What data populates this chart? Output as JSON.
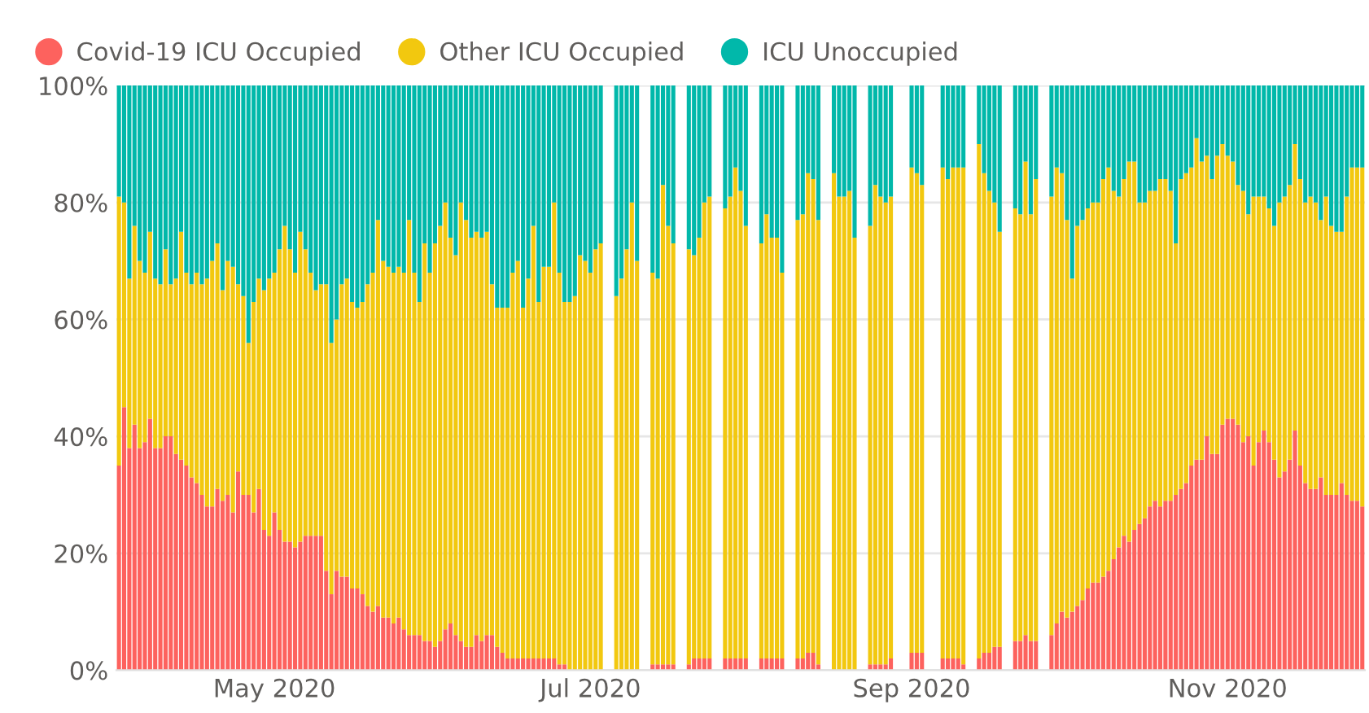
{
  "chart_data": {
    "type": "bar",
    "stacked": true,
    "legend": "top left",
    "grid": "y",
    "ylim": [
      0,
      100
    ],
    "yticks": [
      {
        "value": 0,
        "label": "0%"
      },
      {
        "value": 20,
        "label": "20%"
      },
      {
        "value": 40,
        "label": "40%"
      },
      {
        "value": 60,
        "label": "60%"
      },
      {
        "value": 80,
        "label": "80%"
      },
      {
        "value": 100,
        "label": "100%"
      }
    ],
    "xlim": [
      "2020-03-31T12:00",
      "2020-11-27T12:00"
    ],
    "xticks": [
      {
        "value": "2020-05-01",
        "label": "May 2020"
      },
      {
        "value": "2020-07-01",
        "label": "Jul 2020"
      },
      {
        "value": "2020-09-01",
        "label": "Sep 2020"
      },
      {
        "value": "2020-11-01",
        "label": "Nov 2020"
      }
    ],
    "x": [
      "2020-04-01",
      "2020-04-02",
      "2020-04-03",
      "2020-04-04",
      "2020-04-05",
      "2020-04-06",
      "2020-04-07",
      "2020-04-08",
      "2020-04-09",
      "2020-04-10",
      "2020-04-11",
      "2020-04-12",
      "2020-04-13",
      "2020-04-14",
      "2020-04-15",
      "2020-04-16",
      "2020-04-17",
      "2020-04-18",
      "2020-04-19",
      "2020-04-20",
      "2020-04-21",
      "2020-04-22",
      "2020-04-23",
      "2020-04-24",
      "2020-04-25",
      "2020-04-26",
      "2020-04-27",
      "2020-04-28",
      "2020-04-29",
      "2020-04-30",
      "2020-05-01",
      "2020-05-02",
      "2020-05-03",
      "2020-05-04",
      "2020-05-05",
      "2020-05-06",
      "2020-05-07",
      "2020-05-08",
      "2020-05-09",
      "2020-05-10",
      "2020-05-11",
      "2020-05-12",
      "2020-05-13",
      "2020-05-14",
      "2020-05-15",
      "2020-05-16",
      "2020-05-17",
      "2020-05-18",
      "2020-05-19",
      "2020-05-20",
      "2020-05-21",
      "2020-05-22",
      "2020-05-23",
      "2020-05-24",
      "2020-05-25",
      "2020-05-26",
      "2020-05-27",
      "2020-05-28",
      "2020-05-29",
      "2020-05-30",
      "2020-05-31",
      "2020-06-01",
      "2020-06-02",
      "2020-06-03",
      "2020-06-04",
      "2020-06-05",
      "2020-06-06",
      "2020-06-07",
      "2020-06-08",
      "2020-06-09",
      "2020-06-10",
      "2020-06-11",
      "2020-06-12",
      "2020-06-13",
      "2020-06-14",
      "2020-06-15",
      "2020-06-16",
      "2020-06-17",
      "2020-06-18",
      "2020-06-19",
      "2020-06-20",
      "2020-06-21",
      "2020-06-22",
      "2020-06-23",
      "2020-06-24",
      "2020-06-25",
      "2020-06-26",
      "2020-06-27",
      "2020-06-28",
      "2020-06-29",
      "2020-06-30",
      "2020-07-01",
      "2020-07-02",
      "2020-07-03",
      "2020-07-06",
      "2020-07-07",
      "2020-07-08",
      "2020-07-09",
      "2020-07-10",
      "2020-07-13",
      "2020-07-14",
      "2020-07-15",
      "2020-07-16",
      "2020-07-17",
      "2020-07-20",
      "2020-07-21",
      "2020-07-22",
      "2020-07-23",
      "2020-07-24",
      "2020-07-27",
      "2020-07-28",
      "2020-07-29",
      "2020-07-30",
      "2020-07-31",
      "2020-08-03",
      "2020-08-04",
      "2020-08-05",
      "2020-08-06",
      "2020-08-07",
      "2020-08-10",
      "2020-08-11",
      "2020-08-12",
      "2020-08-13",
      "2020-08-14",
      "2020-08-17",
      "2020-08-18",
      "2020-08-19",
      "2020-08-20",
      "2020-08-21",
      "2020-08-24",
      "2020-08-25",
      "2020-08-26",
      "2020-08-27",
      "2020-08-28",
      "2020-09-01",
      "2020-09-02",
      "2020-09-03",
      "2020-09-07",
      "2020-09-08",
      "2020-09-09",
      "2020-09-10",
      "2020-09-11",
      "2020-09-14",
      "2020-09-15",
      "2020-09-16",
      "2020-09-17",
      "2020-09-18",
      "2020-09-21",
      "2020-09-22",
      "2020-09-23",
      "2020-09-24",
      "2020-09-25",
      "2020-09-28",
      "2020-09-29",
      "2020-09-30",
      "2020-10-01",
      "2020-10-02",
      "2020-10-03",
      "2020-10-04",
      "2020-10-05",
      "2020-10-06",
      "2020-10-07",
      "2020-10-08",
      "2020-10-09",
      "2020-10-10",
      "2020-10-11",
      "2020-10-12",
      "2020-10-13",
      "2020-10-14",
      "2020-10-15",
      "2020-10-16",
      "2020-10-17",
      "2020-10-18",
      "2020-10-19",
      "2020-10-20",
      "2020-10-21",
      "2020-10-22",
      "2020-10-23",
      "2020-10-24",
      "2020-10-25",
      "2020-10-26",
      "2020-10-27",
      "2020-10-28",
      "2020-10-29",
      "2020-10-30",
      "2020-10-31",
      "2020-11-01",
      "2020-11-02",
      "2020-11-03",
      "2020-11-04",
      "2020-11-05",
      "2020-11-06",
      "2020-11-07",
      "2020-11-08",
      "2020-11-09",
      "2020-11-10",
      "2020-11-11",
      "2020-11-12",
      "2020-11-13",
      "2020-11-14",
      "2020-11-15",
      "2020-11-16",
      "2020-11-17",
      "2020-11-18",
      "2020-11-19",
      "2020-11-20",
      "2020-11-21",
      "2020-11-22",
      "2020-11-23",
      "2020-11-24",
      "2020-11-25",
      "2020-11-26",
      "2020-11-27"
    ],
    "series": [
      {
        "name": "Covid-19 ICU Occupied",
        "color": "#fd625e",
        "values": [
          35,
          45,
          38,
          42,
          38,
          39,
          43,
          38,
          38,
          40,
          40,
          37,
          36,
          35,
          33,
          32,
          30,
          28,
          28,
          31,
          29,
          30,
          27,
          34,
          30,
          30,
          27,
          31,
          24,
          23,
          27,
          24,
          22,
          22,
          21,
          22,
          23,
          23,
          23,
          23,
          17,
          13,
          17,
          16,
          16,
          14,
          14,
          13,
          11,
          10,
          11,
          9,
          9,
          8,
          9,
          7,
          6,
          6,
          6,
          5,
          5,
          4,
          5,
          7,
          8,
          6,
          5,
          4,
          4,
          6,
          5,
          6,
          6,
          4,
          3,
          2,
          2,
          2,
          2,
          2,
          2,
          2,
          2,
          2,
          2,
          1,
          1,
          0,
          0,
          0,
          0,
          0,
          0,
          0,
          0,
          0,
          0,
          0,
          0,
          1,
          1,
          1,
          1,
          1,
          1,
          2,
          2,
          2,
          2,
          2,
          2,
          2,
          2,
          2,
          2,
          2,
          2,
          2,
          2,
          2,
          2,
          3,
          3,
          1,
          0,
          0,
          0,
          0,
          0,
          1,
          1,
          1,
          1,
          2,
          3,
          3,
          3,
          2,
          2,
          2,
          2,
          1,
          2,
          3,
          3,
          4,
          4,
          5,
          5,
          6,
          5,
          5,
          6,
          8,
          10,
          9,
          10,
          11,
          12,
          14,
          15,
          15,
          16,
          17,
          19,
          21,
          23,
          22,
          24,
          25,
          26,
          28,
          29,
          28,
          29,
          29,
          30,
          31,
          32,
          35,
          36,
          36,
          40,
          37,
          37,
          42,
          43,
          43,
          42,
          39,
          40,
          35,
          39,
          41,
          39,
          36,
          33,
          34,
          36,
          41,
          35,
          32,
          31,
          31,
          33,
          30,
          30,
          30,
          32,
          30,
          29,
          29,
          28
        ]
      },
      {
        "name": "Other ICU Occupied",
        "color": "#f2c80f",
        "values": [
          46,
          35,
          29,
          34,
          32,
          29,
          32,
          29,
          28,
          32,
          26,
          30,
          39,
          33,
          33,
          36,
          36,
          39,
          42,
          42,
          36,
          40,
          42,
          32,
          34,
          26,
          36,
          36,
          41,
          44,
          41,
          48,
          54,
          50,
          47,
          53,
          49,
          45,
          42,
          43,
          49,
          43,
          43,
          50,
          51,
          49,
          48,
          50,
          55,
          58,
          66,
          61,
          60,
          60,
          60,
          61,
          71,
          62,
          57,
          68,
          63,
          69,
          71,
          73,
          66,
          65,
          75,
          73,
          70,
          69,
          69,
          69,
          60,
          58,
          59,
          60,
          66,
          68,
          60,
          65,
          74,
          61,
          67,
          67,
          78,
          67,
          62,
          63,
          64,
          71,
          70,
          68,
          72,
          73,
          64,
          67,
          72,
          80,
          70,
          67,
          66,
          82,
          75,
          72,
          71,
          69,
          72,
          78,
          79,
          77,
          79,
          84,
          80,
          74,
          71,
          76,
          72,
          72,
          66,
          75,
          76,
          82,
          81,
          76,
          85,
          81,
          81,
          82,
          74,
          75,
          82,
          80,
          79,
          79,
          83,
          82,
          80,
          84,
          82,
          84,
          84,
          85,
          88,
          82,
          79,
          76,
          71,
          74,
          73,
          81,
          73,
          79,
          75,
          78,
          75,
          68,
          57,
          65,
          65,
          65,
          65,
          65,
          68,
          69,
          63,
          60,
          61,
          65,
          63,
          55,
          54,
          54,
          53,
          56,
          55,
          53,
          43,
          53,
          53,
          51,
          55,
          51,
          48,
          47,
          51,
          48,
          45,
          44,
          41,
          43,
          38,
          46,
          42,
          40,
          40,
          40,
          47,
          47,
          47,
          49,
          49,
          48,
          50,
          49,
          44,
          51,
          46,
          45,
          43,
          51,
          57,
          57,
          58
        ]
      },
      {
        "name": "ICU Unoccupied",
        "color": "#01b8aa",
        "values": [
          19,
          20,
          33,
          24,
          30,
          32,
          25,
          33,
          34,
          28,
          34,
          33,
          25,
          32,
          34,
          32,
          34,
          33,
          30,
          27,
          35,
          30,
          31,
          34,
          36,
          44,
          37,
          33,
          35,
          33,
          32,
          28,
          24,
          28,
          32,
          25,
          28,
          32,
          35,
          34,
          34,
          44,
          40,
          34,
          33,
          37,
          38,
          37,
          34,
          32,
          23,
          30,
          31,
          32,
          31,
          32,
          23,
          32,
          37,
          27,
          32,
          27,
          24,
          20,
          26,
          29,
          20,
          23,
          26,
          25,
          26,
          25,
          34,
          38,
          38,
          38,
          32,
          30,
          38,
          33,
          24,
          37,
          31,
          31,
          20,
          32,
          37,
          37,
          36,
          29,
          30,
          32,
          28,
          27,
          36,
          33,
          28,
          20,
          30,
          32,
          33,
          17,
          24,
          27,
          28,
          29,
          26,
          20,
          19,
          21,
          19,
          14,
          18,
          24,
          27,
          22,
          26,
          26,
          32,
          23,
          22,
          15,
          16,
          23,
          15,
          19,
          19,
          18,
          26,
          24,
          17,
          19,
          20,
          19,
          14,
          15,
          17,
          14,
          16,
          14,
          14,
          14,
          10,
          15,
          18,
          20,
          25,
          21,
          22,
          13,
          22,
          16,
          19,
          14,
          15,
          23,
          33,
          24,
          23,
          21,
          20,
          20,
          16,
          14,
          18,
          19,
          16,
          13,
          13,
          20,
          20,
          18,
          18,
          16,
          16,
          18,
          27,
          16,
          15,
          14,
          9,
          13,
          12,
          16,
          12,
          10,
          12,
          13,
          17,
          18,
          22,
          19,
          19,
          19,
          21,
          24,
          20,
          19,
          17,
          10,
          16,
          20,
          19,
          20,
          23,
          19,
          24,
          25,
          25,
          19,
          14,
          14,
          14
        ]
      }
    ]
  }
}
